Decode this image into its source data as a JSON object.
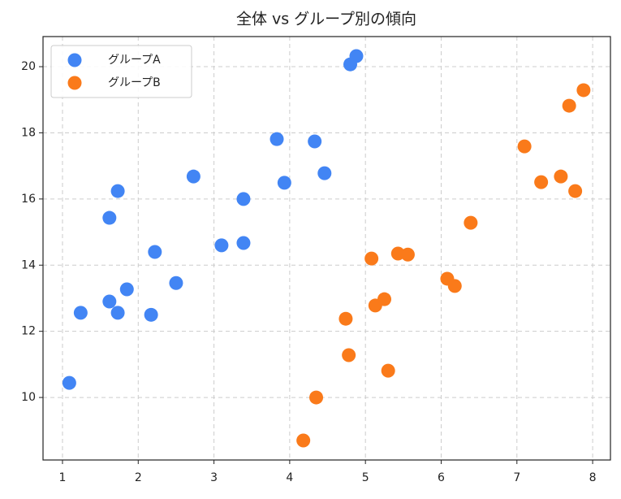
{
  "chart_data": {
    "type": "scatter",
    "title": "全体 vs グループ別の傾向",
    "series": [
      {
        "name": "グループA",
        "color": "#4285F4",
        "x": [
          1.09,
          1.24,
          1.62,
          1.73,
          1.85,
          2.17,
          2.5,
          2.22,
          1.62,
          1.73,
          2.73,
          3.1,
          3.39,
          3.39,
          3.83,
          3.93,
          4.33,
          4.46,
          4.8,
          4.88
        ],
        "values": [
          10.44,
          12.56,
          12.9,
          12.56,
          13.27,
          12.5,
          13.46,
          14.4,
          15.43,
          16.24,
          16.68,
          14.6,
          14.67,
          16.0,
          17.81,
          16.49,
          17.74,
          16.78,
          20.07,
          20.32
        ]
      },
      {
        "name": "グループB",
        "color": "#FA7A1A",
        "x": [
          4.18,
          4.35,
          4.74,
          4.78,
          5.3,
          5.13,
          5.25,
          5.08,
          5.43,
          5.56,
          6.08,
          6.18,
          6.39,
          7.1,
          7.32,
          7.58,
          7.77,
          7.69,
          7.88
        ],
        "values": [
          8.7,
          10.0,
          12.38,
          11.28,
          10.81,
          12.78,
          12.97,
          14.2,
          14.35,
          14.32,
          13.59,
          13.37,
          15.28,
          17.59,
          16.51,
          16.68,
          16.24,
          18.82,
          19.29
        ]
      }
    ],
    "xlim": [
      0.743,
      8.235
    ],
    "ylim": [
      8.11,
      20.91
    ],
    "xticks": [
      1,
      2,
      3,
      4,
      5,
      6,
      7,
      8
    ],
    "yticks": [
      10,
      12,
      14,
      16,
      18,
      20
    ],
    "grid": true,
    "legend": "upper left"
  }
}
